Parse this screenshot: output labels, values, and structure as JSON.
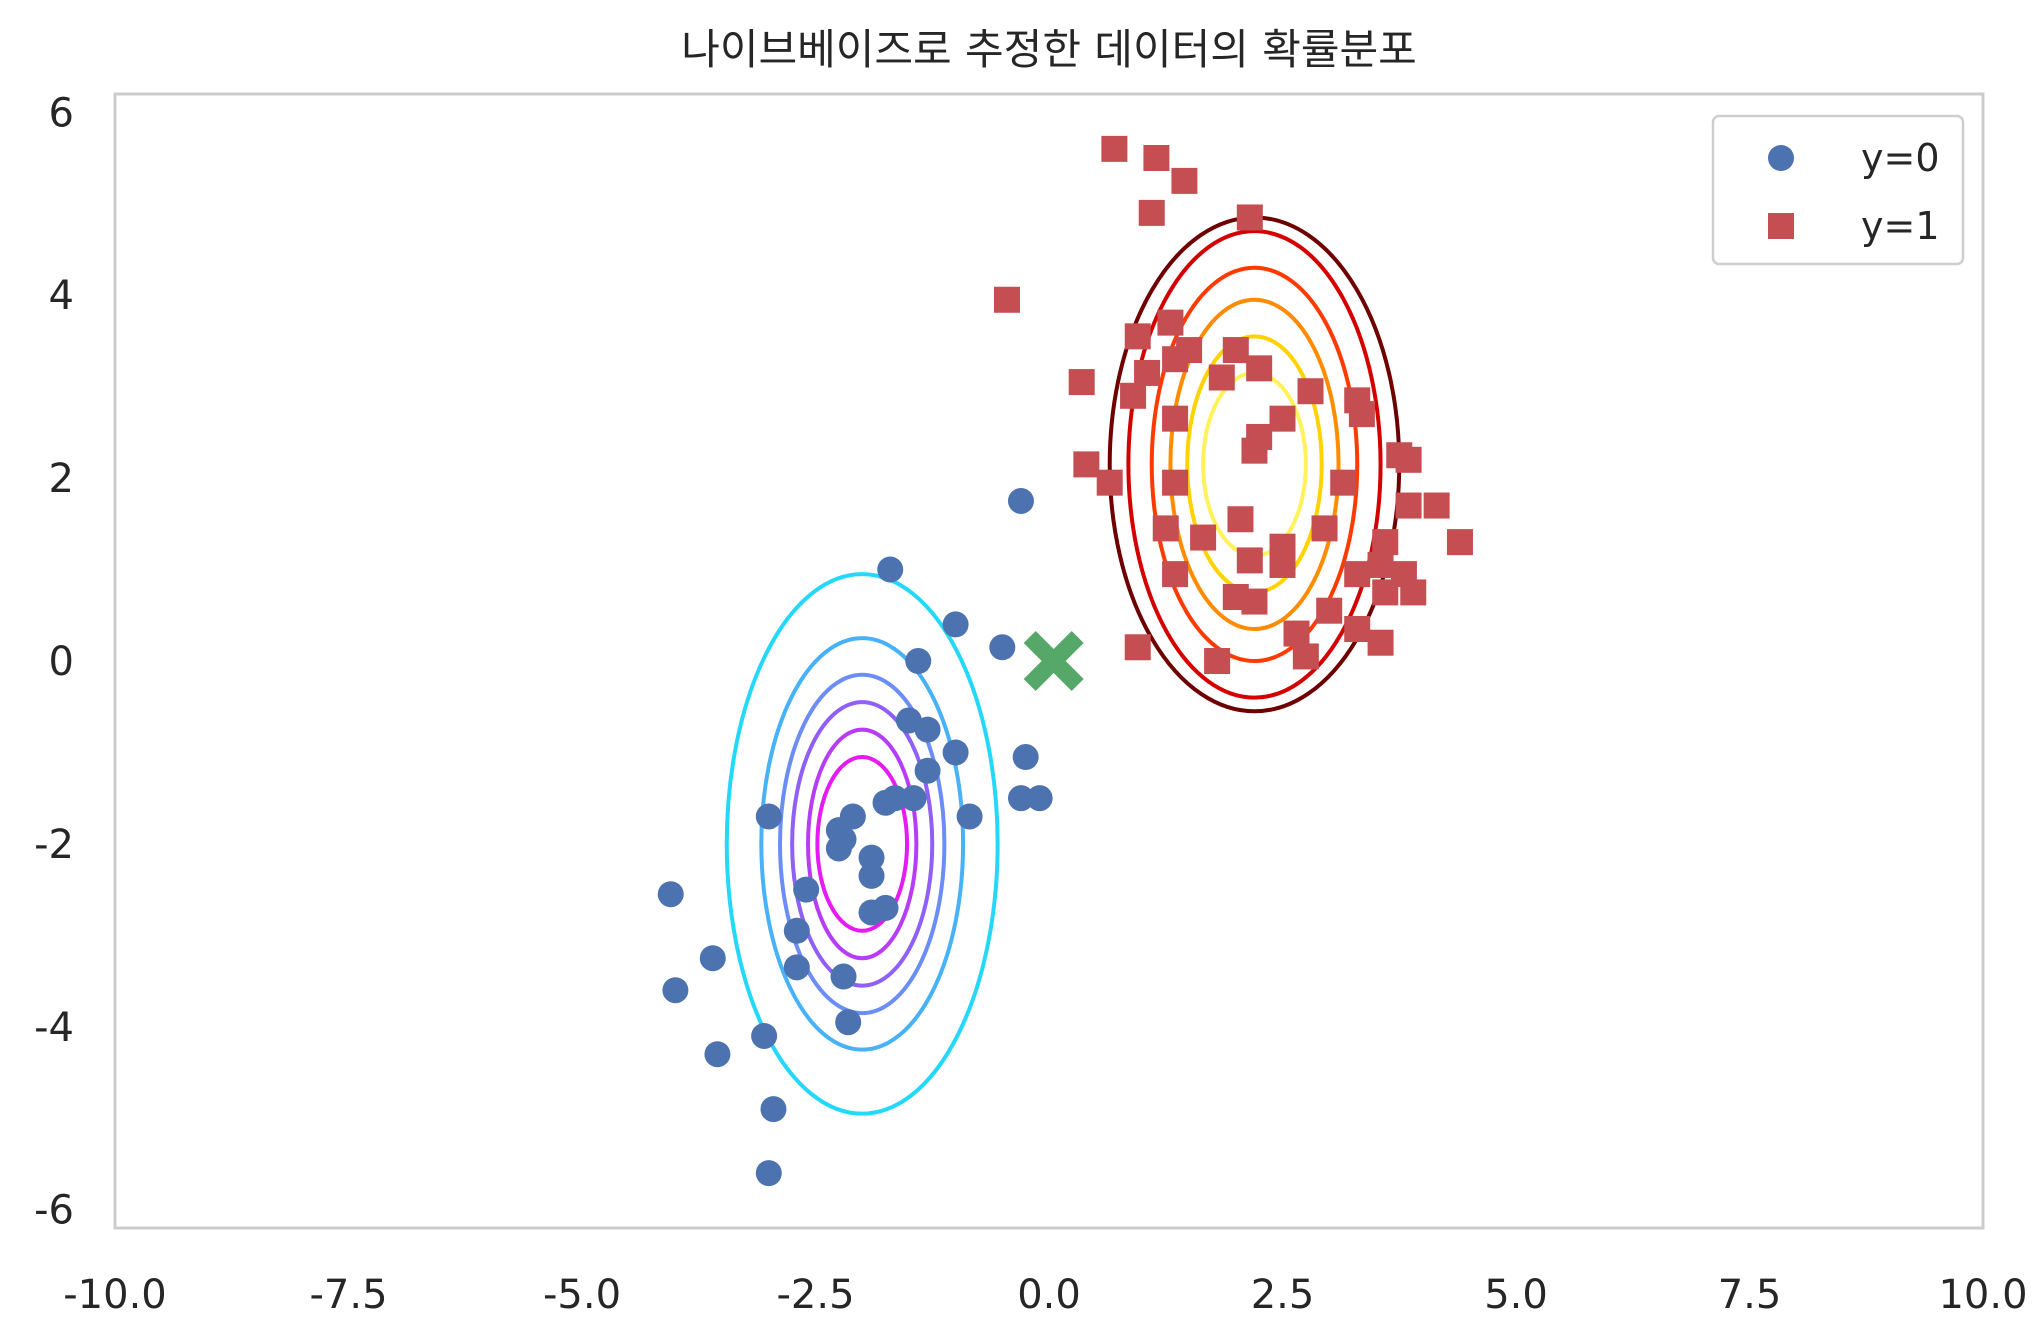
{
  "chart_data": {
    "type": "scatter",
    "title": "나이브베이즈로 추정한 데이터의 확률분포",
    "xlabel": "",
    "ylabel": "",
    "xlim": [
      -10,
      10
    ],
    "ylim": [
      -6.2,
      6.2
    ],
    "xticks": [
      "-10.0",
      "-7.5",
      "-5.0",
      "-2.5",
      "0.0",
      "2.5",
      "5.0",
      "7.5",
      "10.0"
    ],
    "xtick_values": [
      -10,
      -7.5,
      -5,
      -2.5,
      0,
      2.5,
      5,
      7.5,
      10
    ],
    "yticks": [
      "6",
      "4",
      "2",
      "0",
      "-2",
      "-4",
      "-6"
    ],
    "ytick_values": [
      6,
      4,
      2,
      0,
      -2,
      -4,
      -6
    ],
    "grid": false,
    "legend_position": "top-right",
    "series": [
      {
        "name": "y=0",
        "marker": "circle",
        "color": "#4c72b0",
        "points": [
          [
            -1.7,
            1.0
          ],
          [
            -0.3,
            1.75
          ],
          [
            -1.0,
            0.4
          ],
          [
            -0.5,
            0.15
          ],
          [
            -1.4,
            0.0
          ],
          [
            -1.5,
            -0.65
          ],
          [
            -1.3,
            -0.75
          ],
          [
            -1.0,
            -1.0
          ],
          [
            -0.25,
            -1.05
          ],
          [
            -1.3,
            -1.2
          ],
          [
            -1.45,
            -1.5
          ],
          [
            -1.65,
            -1.5
          ],
          [
            -1.75,
            -1.55
          ],
          [
            -0.3,
            -1.5
          ],
          [
            -0.1,
            -1.5
          ],
          [
            -0.85,
            -1.7
          ],
          [
            -3.0,
            -1.7
          ],
          [
            -2.1,
            -1.7
          ],
          [
            -2.25,
            -1.85
          ],
          [
            -2.2,
            -1.95
          ],
          [
            -2.25,
            -2.05
          ],
          [
            -1.9,
            -2.15
          ],
          [
            -1.9,
            -2.35
          ],
          [
            -2.6,
            -2.5
          ],
          [
            -1.9,
            -2.75
          ],
          [
            -1.75,
            -2.7
          ],
          [
            -2.7,
            -2.95
          ],
          [
            -2.7,
            -3.35
          ],
          [
            -2.2,
            -3.45
          ],
          [
            -2.15,
            -3.95
          ],
          [
            -3.6,
            -3.25
          ],
          [
            -3.05,
            -4.1
          ],
          [
            -3.55,
            -4.3
          ],
          [
            -4.05,
            -2.55
          ],
          [
            -4.0,
            -3.6
          ],
          [
            -2.95,
            -4.9
          ],
          [
            -3.0,
            -5.6
          ]
        ]
      },
      {
        "name": "y=1",
        "marker": "square",
        "color": "#c44e52",
        "points": [
          [
            0.7,
            5.6
          ],
          [
            1.15,
            5.5
          ],
          [
            1.45,
            5.25
          ],
          [
            1.1,
            4.9
          ],
          [
            2.15,
            4.85
          ],
          [
            -0.45,
            3.95
          ],
          [
            1.3,
            3.7
          ],
          [
            0.95,
            3.55
          ],
          [
            1.5,
            3.4
          ],
          [
            2.0,
            3.4
          ],
          [
            1.35,
            3.3
          ],
          [
            1.05,
            3.15
          ],
          [
            2.25,
            3.2
          ],
          [
            1.85,
            3.1
          ],
          [
            0.35,
            3.05
          ],
          [
            2.8,
            2.95
          ],
          [
            0.9,
            2.9
          ],
          [
            3.3,
            2.85
          ],
          [
            1.35,
            2.65
          ],
          [
            2.5,
            2.65
          ],
          [
            3.35,
            2.7
          ],
          [
            2.25,
            2.45
          ],
          [
            2.2,
            2.3
          ],
          [
            0.4,
            2.15
          ],
          [
            3.75,
            2.25
          ],
          [
            3.85,
            2.2
          ],
          [
            0.65,
            1.95
          ],
          [
            1.35,
            1.95
          ],
          [
            3.15,
            1.95
          ],
          [
            3.85,
            1.7
          ],
          [
            4.15,
            1.7
          ],
          [
            2.05,
            1.55
          ],
          [
            1.25,
            1.45
          ],
          [
            2.95,
            1.45
          ],
          [
            1.65,
            1.35
          ],
          [
            4.4,
            1.3
          ],
          [
            3.6,
            1.3
          ],
          [
            2.5,
            1.25
          ],
          [
            2.15,
            1.1
          ],
          [
            2.5,
            1.05
          ],
          [
            3.55,
            1.05
          ],
          [
            1.35,
            0.95
          ],
          [
            3.8,
            0.95
          ],
          [
            3.3,
            0.95
          ],
          [
            3.6,
            0.75
          ],
          [
            3.9,
            0.75
          ],
          [
            2.0,
            0.7
          ],
          [
            2.2,
            0.65
          ],
          [
            3.0,
            0.55
          ],
          [
            3.3,
            0.35
          ],
          [
            2.65,
            0.3
          ],
          [
            3.55,
            0.2
          ],
          [
            0.95,
            0.15
          ],
          [
            2.75,
            0.05
          ],
          [
            1.8,
            0.0
          ]
        ]
      },
      {
        "name": "",
        "marker": "x",
        "color": "#55a868",
        "points": [
          [
            0.05,
            0.0
          ]
        ]
      }
    ],
    "contours": [
      {
        "class": "y=0",
        "center": [
          -2.0,
          -2.0
        ],
        "levels": [
          {
            "rx": 0.95,
            "ry": 0.48,
            "color": "#e41cf2"
          },
          {
            "rx": 1.25,
            "ry": 0.58,
            "color": "#b73cf5"
          },
          {
            "rx": 1.55,
            "ry": 0.75,
            "color": "#8f5ff7"
          },
          {
            "rx": 1.85,
            "ry": 0.88,
            "color": "#6b8df6"
          },
          {
            "rx": 2.25,
            "ry": 1.08,
            "color": "#47b2f7"
          },
          {
            "rx": 2.95,
            "ry": 1.45,
            "color": "#24d8f9"
          }
        ]
      },
      {
        "class": "y=1",
        "center": [
          2.2,
          2.15
        ],
        "levels": [
          {
            "rx": 1.0,
            "ry": 0.55,
            "color": "#fff25a"
          },
          {
            "rx": 1.4,
            "ry": 0.72,
            "color": "#ffd200"
          },
          {
            "rx": 1.8,
            "ry": 0.9,
            "color": "#ff8c00"
          },
          {
            "rx": 2.15,
            "ry": 1.1,
            "color": "#ff3a00"
          },
          {
            "rx": 2.55,
            "ry": 1.35,
            "color": "#d40000"
          },
          {
            "rx": 2.7,
            "ry": 1.55,
            "color": "#6e0000"
          }
        ]
      }
    ],
    "legend": [
      {
        "label": "y=0",
        "marker": "circle",
        "color": "#4c72b0"
      },
      {
        "label": "y=1",
        "marker": "square",
        "color": "#c44e52"
      }
    ]
  }
}
